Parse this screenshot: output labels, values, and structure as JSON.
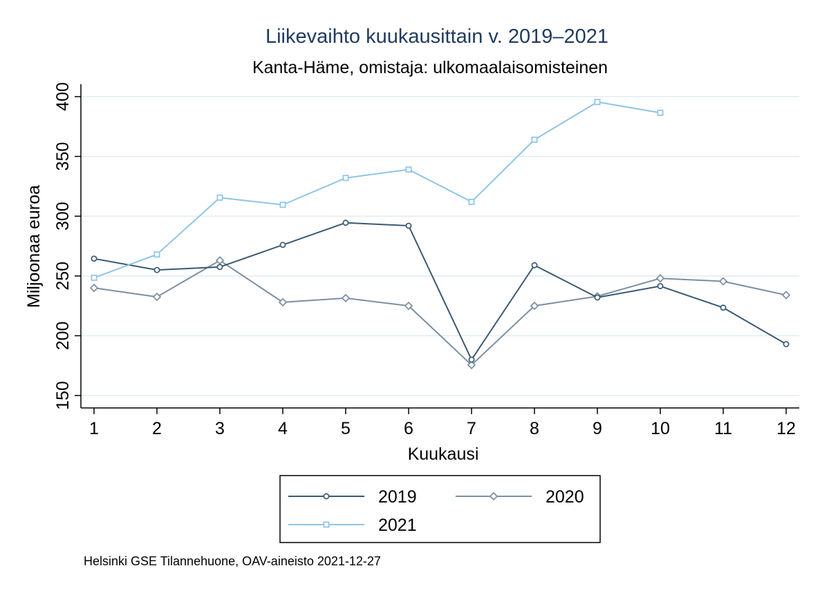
{
  "chart_data": {
    "type": "line",
    "title": "Liikevaihto kuukausittain v. 2019–2021",
    "subtitle": "Kanta-Häme, omistaja: ulkomaalaisomisteinen",
    "xlabel": "Kuukausi",
    "ylabel": "Miljoonaa euroa",
    "x": [
      1,
      2,
      3,
      4,
      5,
      6,
      7,
      8,
      9,
      10,
      11,
      12
    ],
    "x_ticks": [
      "1",
      "2",
      "3",
      "4",
      "5",
      "6",
      "7",
      "8",
      "9",
      "10",
      "11",
      "12"
    ],
    "y_ticks": [
      "150",
      "200",
      "250",
      "300",
      "350",
      "400"
    ],
    "ylim": [
      145,
      410
    ],
    "grid": "horizontal",
    "legend_position": "bottom",
    "series": [
      {
        "name": "2019",
        "color": "#3a5872",
        "marker": "circle",
        "values": [
          264.5,
          255,
          257.5,
          276,
          294.5,
          292,
          180,
          259,
          232,
          241.5,
          223.5,
          193
        ]
      },
      {
        "name": "2020",
        "color": "#7b8fa1",
        "marker": "diamond",
        "values": [
          240,
          232.5,
          263,
          228,
          231.5,
          225,
          175.5,
          225,
          233,
          248,
          245.5,
          234
        ]
      },
      {
        "name": "2021",
        "color": "#8ec4e6",
        "marker": "square",
        "values": [
          248.5,
          268,
          315.5,
          309.5,
          332,
          339,
          312,
          364,
          395.5,
          386.5,
          null,
          null
        ]
      }
    ]
  },
  "note": "Helsinki GSE Tilannehuone, OAV-aineisto 2021-12-27"
}
